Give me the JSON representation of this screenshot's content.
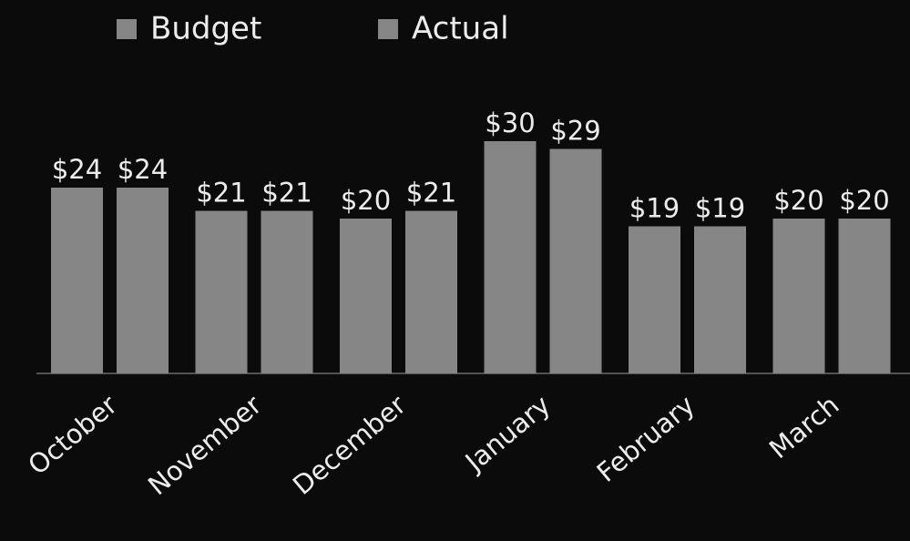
{
  "chart_data": {
    "type": "bar",
    "categories": [
      "October",
      "November",
      "December",
      "January",
      "February",
      "March"
    ],
    "series": [
      {
        "name": "Budget",
        "color": "#868686",
        "values": [
          24,
          21,
          20,
          30,
          19,
          20
        ],
        "value_labels": [
          "$24",
          "$21",
          "$20",
          "$30",
          "$19",
          "$20"
        ]
      },
      {
        "name": "Actual",
        "color": "#868686",
        "values": [
          24,
          21,
          21,
          29,
          19,
          20
        ],
        "value_labels": [
          "$24",
          "$21",
          "$21",
          "$29",
          "$19",
          "$20"
        ]
      }
    ],
    "legend": "top"
  }
}
